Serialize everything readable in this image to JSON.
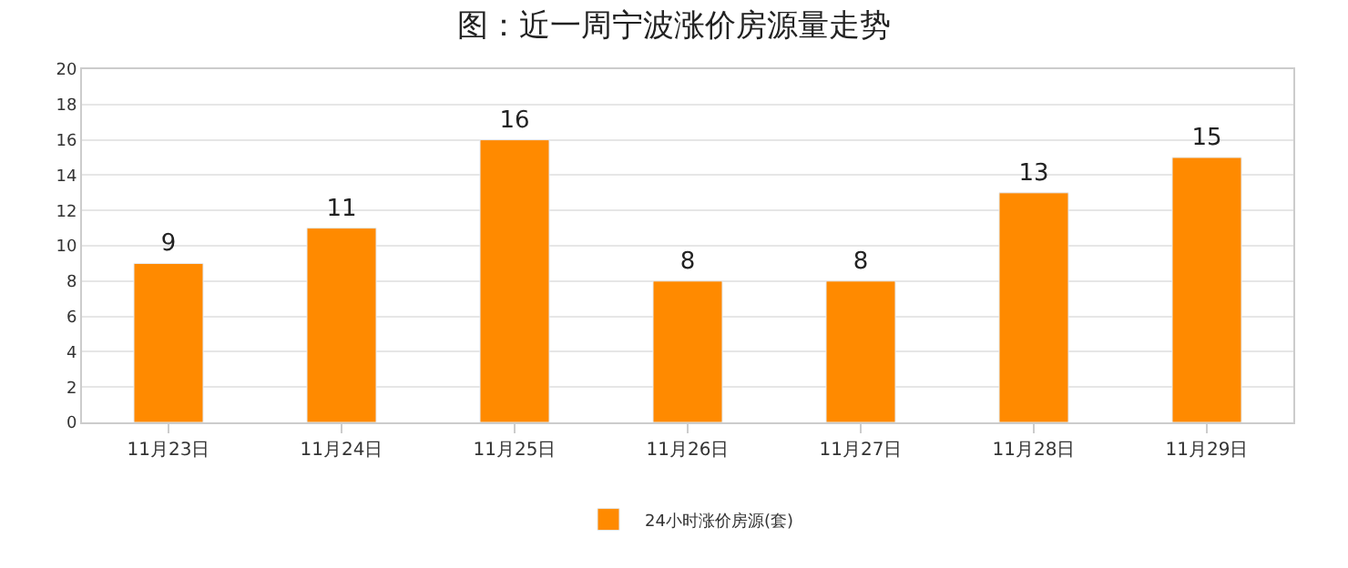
{
  "chart_data": {
    "type": "bar",
    "title": "图：近一周宁波涨价房源量走势",
    "categories": [
      "11月23日",
      "11月24日",
      "11月25日",
      "11月26日",
      "11月27日",
      "11月28日",
      "11月29日"
    ],
    "series": [
      {
        "name": "24小时涨价房源(套)",
        "color": "#ff8a00",
        "values": [
          9,
          11,
          16,
          8,
          8,
          13,
          15
        ]
      }
    ],
    "ylim": [
      0,
      20
    ],
    "yticks": [
      0,
      2,
      4,
      6,
      8,
      10,
      12,
      14,
      16,
      18,
      20
    ],
    "grid": "y",
    "legend": "bottom",
    "data_labels": true
  }
}
